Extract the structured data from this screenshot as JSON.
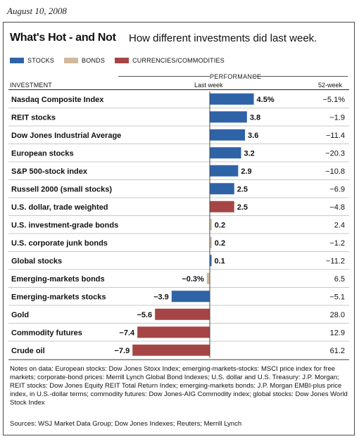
{
  "date": "August 10, 2008",
  "title": "What's Hot - and Not",
  "subtitle": "How different investments did last week.",
  "legend": [
    {
      "label": "STOCKS",
      "color": "#2e63a7"
    },
    {
      "label": "BONDS",
      "color": "#d1b99c"
    },
    {
      "label": "CURRENCIES/COMMODITIES",
      "color": "#a64545"
    }
  ],
  "headers": {
    "performance": "PERFORMANCE",
    "investment": "INVESTMENT",
    "last_week": "Last week",
    "week52": "52-week"
  },
  "chart_data": {
    "type": "bar",
    "orientation": "horizontal",
    "categories": [
      "Nasdaq Composite Index",
      "REIT stocks",
      "Dow Jones Industrial Average",
      "European stocks",
      "S&P 500-stock index",
      "Russell 2000 (small stocks)",
      "U.S. dollar, trade weighted",
      "U.S. investment-grade bonds",
      "U.S. corporate junk bonds",
      "Global stocks",
      "Emerging-markets bonds",
      "Emerging-markets stocks",
      "Gold",
      "Commodity futures",
      "Crude oil"
    ],
    "values": [
      4.5,
      3.8,
      3.6,
      3.2,
      2.9,
      2.5,
      2.5,
      0.2,
      0.2,
      0.1,
      -0.3,
      -3.9,
      -5.6,
      -7.4,
      -7.9
    ],
    "value_labels": [
      "4.5%",
      "3.8",
      "3.6",
      "3.2",
      "2.9",
      "2.5",
      "2.5",
      "0.2",
      "0.2",
      "0.1",
      "−0.3%",
      "−3.9",
      "−5.6",
      "−7.4",
      "−7.9"
    ],
    "groups": [
      "stocks",
      "stocks",
      "stocks",
      "stocks",
      "stocks",
      "stocks",
      "currencies",
      "bonds",
      "bonds",
      "stocks",
      "bonds",
      "stocks",
      "currencies",
      "currencies",
      "currencies"
    ],
    "week52": [
      "−5.1%",
      "−1.9",
      "−11.4",
      "−20.3",
      "−10.8",
      "−6.9",
      "−4.8",
      "2.4",
      "−1.2",
      "−11.2",
      "6.5",
      "−5.1",
      "28.0",
      "12.9",
      "61.2"
    ],
    "colors": {
      "stocks": "#2e63a7",
      "bonds": "#d1b99c",
      "currencies": "#a64545"
    }
  },
  "notes": "Notes on data: European stocks: Dow Jones Stoxx Index; emerging-markets-stocks: MSCI price index for free markets; corporate-bond prices: Merrill Lynch Global Bond Indexes; U.S. dollar and U.S. Treasury: J.P. Morgan; REIT stocks: Dow Jones Equity REIT Total Return Index; emerging-markets bonds: J.P. Morgan EMBI-plus price index, in U.S.-dollar terms; commodity futures: Dow Jones-AIG Commodity index; global stocks: Dow Jones World Stock Index",
  "sources": "Sources: WSJ Market Data Group; Dow Jones Indexes; Reuters; Merrill Lynch"
}
